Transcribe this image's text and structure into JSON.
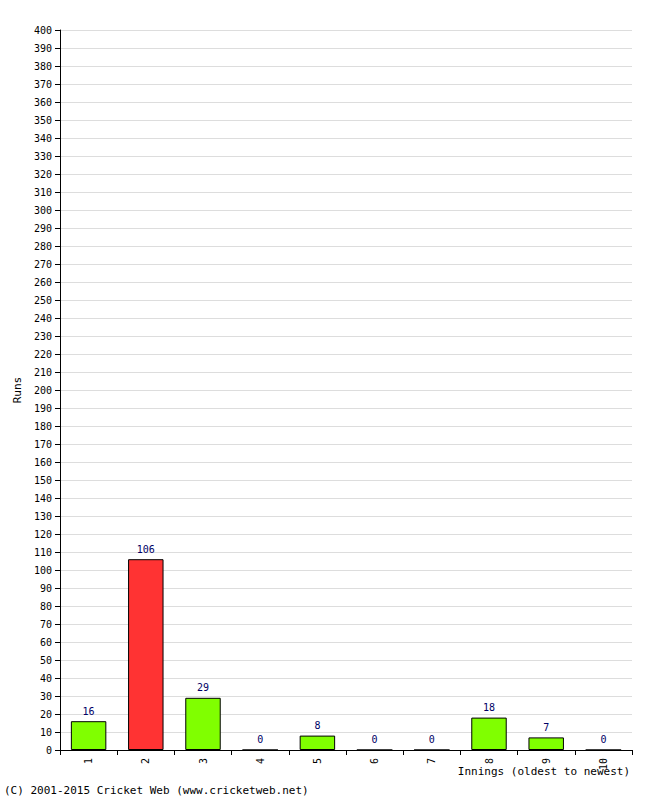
{
  "chart_data": {
    "type": "bar",
    "categories": [
      "1",
      "2",
      "3",
      "4",
      "5",
      "6",
      "7",
      "8",
      "9",
      "10"
    ],
    "values": [
      16,
      106,
      29,
      0,
      8,
      0,
      0,
      18,
      7,
      0
    ],
    "colors": [
      "#80ff00",
      "#ff3333",
      "#80ff00",
      "#80ff00",
      "#80ff00",
      "#80ff00",
      "#80ff00",
      "#80ff00",
      "#80ff00",
      "#80ff00"
    ],
    "ylabel": "Runs",
    "xlabel": "Innings (oldest to newest)",
    "annotations": [
      "(C) 2001-2015 Cricket Web (www.cricketweb.net)"
    ],
    "ylim": [
      0,
      400
    ],
    "yticks": [
      0,
      10,
      20,
      30,
      40,
      50,
      60,
      70,
      80,
      90,
      100,
      110,
      120,
      130,
      140,
      150,
      160,
      170,
      180,
      190,
      200,
      210,
      220,
      230,
      240,
      250,
      260,
      270,
      280,
      290,
      300,
      310,
      320,
      330,
      340,
      350,
      360,
      370,
      380,
      390,
      400
    ],
    "grid": true,
    "data_labels": true
  }
}
